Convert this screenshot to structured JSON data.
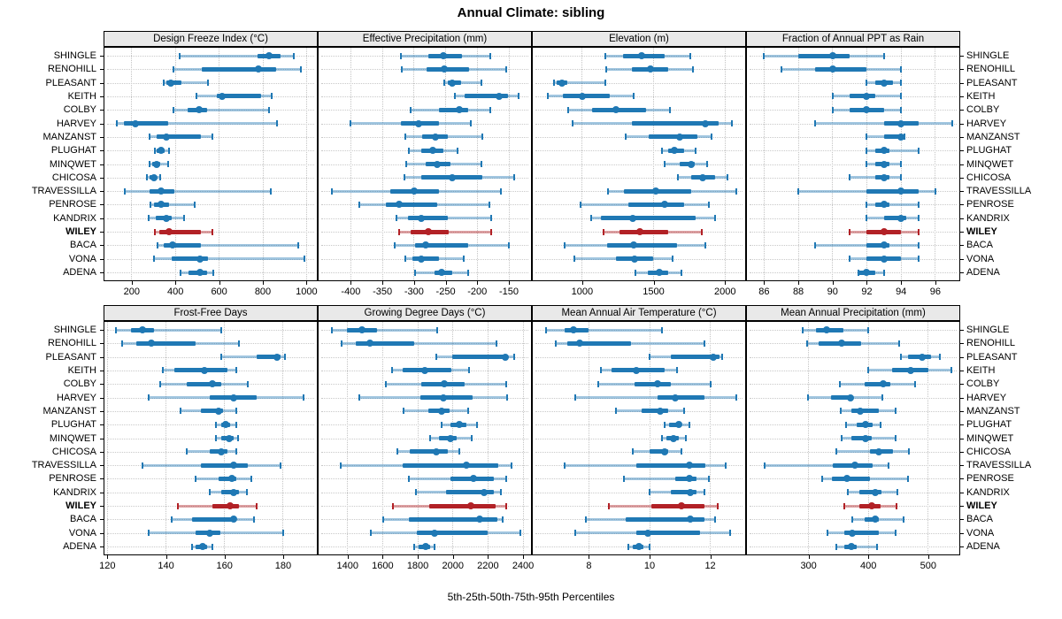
{
  "title": "Annual Climate: sibling",
  "caption": "5th-25th-50th-75th-95th Percentiles",
  "colors": {
    "series_blue": "#1f78b4",
    "series_blue_light": "rgba(31,120,180,0.42)",
    "highlight_red": "#b22126",
    "highlight_red_light": "rgba(178,33,38,0.42)",
    "panel_header_bg": "#e9e9e9",
    "grid": "#c9c9c9"
  },
  "chart_data": {
    "type": "dot-interval",
    "percentiles": [
      5,
      25,
      50,
      75,
      95
    ],
    "highlight_station": "WILEY",
    "stations": [
      "SHINGLE",
      "RENOHILL",
      "PLEASANT",
      "KEITH",
      "COLBY",
      "HARVEY",
      "MANZANST",
      "PLUGHAT",
      "MINQWET",
      "CHICOSA",
      "TRAVESSILLA",
      "PENROSE",
      "KANDRIX",
      "WILEY",
      "BACA",
      "VONA",
      "ADENA"
    ],
    "panels": [
      {
        "title": "Design Freeze Index (°C)",
        "xlim": [
          75,
          1047
        ],
        "ticks": [
          200,
          400,
          600,
          800,
          1000
        ],
        "values": [
          [
            420,
            775,
            830,
            880,
            940
          ],
          [
            390,
            520,
            780,
            860,
            975
          ],
          [
            345,
            357,
            380,
            428,
            550
          ],
          [
            495,
            590,
            615,
            790,
            840
          ],
          [
            390,
            455,
            510,
            545,
            830
          ],
          [
            130,
            165,
            215,
            365,
            865
          ],
          [
            280,
            315,
            360,
            515,
            570
          ],
          [
            305,
            315,
            335,
            350,
            370
          ],
          [
            283,
            293,
            312,
            330,
            365
          ],
          [
            270,
            283,
            300,
            313,
            330
          ],
          [
            170,
            283,
            335,
            395,
            835
          ],
          [
            287,
            303,
            333,
            370,
            490
          ],
          [
            276,
            310,
            360,
            383,
            440
          ],
          [
            305,
            325,
            370,
            515,
            570
          ],
          [
            320,
            347,
            387,
            515,
            960
          ],
          [
            303,
            383,
            512,
            550,
            990
          ],
          [
            423,
            459,
            513,
            545,
            572
          ]
        ]
      },
      {
        "title": "Effective Precipitation (mm)",
        "xlim": [
          -451,
          -115
        ],
        "ticks": [
          -400,
          -350,
          -300,
          -250,
          -200,
          -150
        ],
        "values": [
          [
            -321,
            -277,
            -254,
            -224,
            -180
          ],
          [
            -320,
            -280,
            -252,
            -213,
            -154
          ],
          [
            -252,
            -247,
            -240,
            -226,
            -194
          ],
          [
            -236,
            -220,
            -165,
            -152,
            -134
          ],
          [
            -305,
            -261,
            -229,
            -215,
            -179
          ],
          [
            -400,
            -321,
            -293,
            -261,
            -210
          ],
          [
            -314,
            -287,
            -266,
            -247,
            -192
          ],
          [
            -308,
            -289,
            -270,
            -254,
            -231
          ],
          [
            -313,
            -282,
            -263,
            -243,
            -193
          ],
          [
            -315,
            -289,
            -240,
            -192,
            -141
          ],
          [
            -430,
            -337,
            -300,
            -261,
            -162
          ],
          [
            -387,
            -344,
            -324,
            -263,
            -181
          ],
          [
            -328,
            -310,
            -289,
            -247,
            -178
          ],
          [
            -324,
            -305,
            -277,
            -245,
            -178
          ],
          [
            -330,
            -298,
            -282,
            -215,
            -150
          ],
          [
            -314,
            -303,
            -289,
            -261,
            -222
          ],
          [
            -298,
            -268,
            -256,
            -240,
            -215
          ]
        ]
      },
      {
        "title": "Elevation (m)",
        "xlim": [
          654,
          2141
        ],
        "ticks": [
          1000,
          1500,
          2000
        ],
        "values": [
          [
            1160,
            1283,
            1416,
            1580,
            1755
          ],
          [
            1170,
            1345,
            1478,
            1600,
            1775
          ],
          [
            800,
            822,
            859,
            893,
            1160
          ],
          [
            760,
            865,
            1000,
            1190,
            1360
          ],
          [
            900,
            1068,
            1238,
            1445,
            1615
          ],
          [
            930,
            1345,
            1865,
            1958,
            2050
          ],
          [
            1305,
            1467,
            1683,
            1805,
            1908
          ],
          [
            1560,
            1600,
            1648,
            1713,
            1795
          ],
          [
            1580,
            1683,
            1760,
            1785,
            1875
          ],
          [
            1672,
            1765,
            1845,
            1929,
            2020
          ],
          [
            1180,
            1293,
            1518,
            1765,
            2080
          ],
          [
            990,
            1324,
            1580,
            1713,
            1885
          ],
          [
            1060,
            1129,
            1355,
            1795,
            1929
          ],
          [
            1150,
            1262,
            1402,
            1600,
            1835
          ],
          [
            875,
            1176,
            1361,
            1662,
            1863
          ],
          [
            945,
            1238,
            1365,
            1498,
            1630
          ],
          [
            1375,
            1457,
            1539,
            1600,
            1693
          ]
        ]
      },
      {
        "title": "Fraction of Annual PPT as Rain",
        "xlim": [
          85,
          97.4
        ],
        "ticks": [
          86,
          88,
          90,
          92,
          94,
          96
        ],
        "values": [
          [
            86,
            88,
            90,
            91,
            93
          ],
          [
            87,
            89,
            90,
            92,
            94
          ],
          [
            92,
            92.5,
            93,
            93.5,
            94
          ],
          [
            90,
            91,
            92,
            92.5,
            94
          ],
          [
            90,
            91,
            92,
            93,
            94
          ],
          [
            89,
            93,
            94,
            95,
            97
          ],
          [
            92,
            93,
            94,
            94.1,
            94.2
          ],
          [
            92,
            92.5,
            93,
            93.3,
            95
          ],
          [
            92,
            92.5,
            93,
            93.3,
            94
          ],
          [
            91,
            92.5,
            93,
            93.3,
            94
          ],
          [
            88,
            92,
            94,
            95,
            96
          ],
          [
            92,
            92.5,
            93,
            93.3,
            95
          ],
          [
            92,
            93,
            94,
            94.3,
            95
          ],
          [
            91,
            92,
            93,
            94,
            95
          ],
          [
            89,
            92,
            93,
            93.3,
            95
          ],
          [
            91,
            92,
            93,
            94,
            95
          ],
          [
            91.5,
            91.5,
            92,
            92.5,
            93
          ]
        ]
      },
      {
        "title": "Frost-Free Days",
        "xlim": [
          119,
          191.5
        ],
        "ticks": [
          120,
          140,
          160,
          180
        ],
        "values": [
          [
            123,
            128,
            132,
            136,
            159
          ],
          [
            125,
            130,
            135,
            150,
            165
          ],
          [
            159,
            171,
            178,
            179,
            180.5
          ],
          [
            139,
            143,
            153,
            161,
            164
          ],
          [
            138,
            147,
            156,
            159,
            168
          ],
          [
            134,
            155,
            163,
            171,
            187
          ],
          [
            145,
            152,
            158,
            159.5,
            164
          ],
          [
            157,
            159,
            160.5,
            162,
            164
          ],
          [
            157,
            159,
            161.5,
            163,
            164.5
          ],
          [
            147,
            155,
            159,
            161,
            164
          ],
          [
            132,
            152,
            163,
            168,
            179
          ],
          [
            150,
            158,
            162.5,
            164,
            169
          ],
          [
            155,
            159,
            163,
            165,
            167.5
          ],
          [
            144,
            156,
            162,
            165,
            171
          ],
          [
            142,
            149,
            163,
            163.5,
            170
          ],
          [
            134,
            150,
            155,
            158.5,
            180
          ],
          [
            149,
            150,
            152.5,
            154,
            156
          ]
        ]
      },
      {
        "title": "Growing Degree Days (°C)",
        "xlim": [
          1235,
          2445
        ],
        "ticks": [
          1400,
          1600,
          1800,
          2000,
          2200,
          2400
        ],
        "values": [
          [
            1310,
            1395,
            1480,
            1570,
            1910
          ],
          [
            1365,
            1445,
            1525,
            1780,
            2250
          ],
          [
            1905,
            1995,
            2300,
            2310,
            2350
          ],
          [
            1655,
            1715,
            1840,
            1990,
            2090
          ],
          [
            1620,
            1820,
            1950,
            2065,
            2305
          ],
          [
            1465,
            1815,
            1945,
            2110,
            2310
          ],
          [
            1720,
            1860,
            1935,
            1980,
            2085
          ],
          [
            1935,
            1985,
            2035,
            2075,
            2135
          ],
          [
            1870,
            1920,
            1985,
            2020,
            2105
          ],
          [
            1685,
            1755,
            1905,
            1970,
            2035
          ],
          [
            1360,
            1715,
            2075,
            2260,
            2335
          ],
          [
            1750,
            1985,
            2115,
            2235,
            2305
          ],
          [
            1790,
            1960,
            2180,
            2235,
            2275
          ],
          [
            1660,
            1865,
            2100,
            2245,
            2305
          ],
          [
            1605,
            1750,
            2155,
            2255,
            2285
          ],
          [
            1530,
            1795,
            1895,
            2200,
            2385
          ],
          [
            1780,
            1805,
            1845,
            1870,
            1895
          ]
        ]
      },
      {
        "title": "Mean Annual Air Temperature (°C)",
        "xlim": [
          6.15,
          13.15
        ],
        "ticks": [
          8,
          10,
          12
        ],
        "values": [
          [
            6.6,
            7.2,
            7.5,
            8.0,
            10.4
          ],
          [
            6.9,
            7.3,
            7.7,
            9.4,
            11.8
          ],
          [
            10.0,
            10.7,
            12.1,
            12.3,
            12.4
          ],
          [
            8.4,
            8.75,
            9.55,
            10.5,
            10.9
          ],
          [
            8.3,
            9.5,
            10.25,
            10.7,
            12.0
          ],
          [
            7.55,
            10.25,
            10.85,
            11.8,
            12.85
          ],
          [
            8.9,
            9.75,
            10.35,
            10.6,
            11.15
          ],
          [
            10.5,
            10.65,
            10.95,
            11.05,
            11.3
          ],
          [
            10.4,
            10.55,
            10.8,
            10.95,
            11.2
          ],
          [
            9.45,
            10.0,
            10.5,
            10.6,
            11.05
          ],
          [
            7.2,
            9.55,
            11.3,
            11.85,
            12.5
          ],
          [
            9.15,
            10.85,
            11.3,
            11.55,
            11.95
          ],
          [
            10.0,
            10.7,
            11.35,
            11.55,
            11.8
          ],
          [
            8.65,
            10.05,
            11.05,
            11.8,
            12.25
          ],
          [
            7.9,
            9.2,
            11.35,
            11.8,
            12.15
          ],
          [
            7.55,
            9.55,
            9.95,
            11.65,
            12.65
          ],
          [
            9.3,
            9.45,
            9.65,
            9.8,
            10.0
          ]
        ]
      },
      {
        "title": "Mean Annual Precipitation (mm)",
        "xlim": [
          197,
          552
        ],
        "ticks": [
          300,
          400,
          500
        ],
        "values": [
          [
            290,
            312,
            330,
            358,
            400
          ],
          [
            298,
            317,
            355,
            388,
            451
          ],
          [
            454,
            466,
            490,
            505,
            520
          ],
          [
            400,
            440,
            470,
            500,
            539
          ],
          [
            353,
            393,
            425,
            437,
            478
          ],
          [
            299,
            338,
            370,
            373,
            424
          ],
          [
            354,
            371,
            387,
            417,
            445
          ],
          [
            363,
            380,
            395,
            407,
            421
          ],
          [
            356,
            371,
            395,
            405,
            445
          ],
          [
            346,
            402,
            417,
            441,
            468
          ],
          [
            227,
            341,
            378,
            407,
            433
          ],
          [
            322,
            339,
            364,
            402,
            466
          ],
          [
            366,
            385,
            411,
            422,
            449
          ],
          [
            359,
            385,
            406,
            420,
            447
          ],
          [
            373,
            393,
            411,
            417,
            459
          ],
          [
            332,
            359,
            373,
            417,
            446
          ],
          [
            346,
            359,
            372,
            380,
            415
          ]
        ]
      }
    ]
  }
}
